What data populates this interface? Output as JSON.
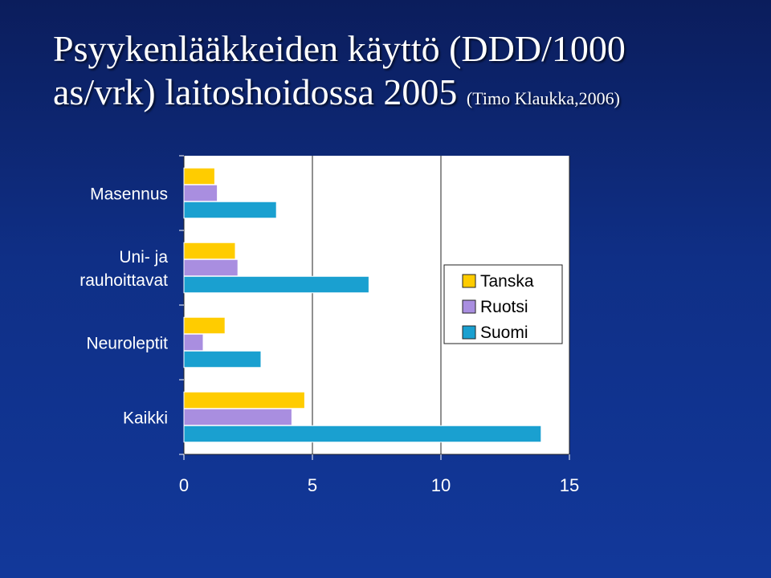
{
  "slide": {
    "title_line1": "Psyykenlääkkeiden käyttö (DDD/1000",
    "title_line2": "as/vrk) laitoshoidossa 2005",
    "title_source": "(Timo Klaukka,2006)"
  },
  "colors": {
    "background": "#0f2f86",
    "plot_area": "#ffffff",
    "tanska": "#ffcc00",
    "ruotsi": "#a98ee0",
    "suomi": "#1aa0d0"
  },
  "chart_data": {
    "type": "bar",
    "orientation": "horizontal",
    "categories": [
      "Masennus",
      "Uni- ja rauhoittavat",
      "Neuroleptit",
      "Kaikki"
    ],
    "category_lines": [
      [
        "Masennus"
      ],
      [
        "Uni- ja",
        "rauhoittavat"
      ],
      [
        "Neuroleptit"
      ],
      [
        "Kaikki"
      ]
    ],
    "series": [
      {
        "name": "Tanska",
        "values": [
          1.2,
          2.0,
          1.6,
          4.7
        ]
      },
      {
        "name": "Ruotsi",
        "values": [
          1.3,
          2.1,
          0.75,
          4.2
        ]
      },
      {
        "name": "Suomi",
        "values": [
          3.6,
          7.2,
          3.0,
          13.9
        ]
      }
    ],
    "xlim": [
      0,
      15
    ],
    "xticks": [
      0,
      5,
      10,
      15
    ],
    "grid": true,
    "legend": "right"
  }
}
